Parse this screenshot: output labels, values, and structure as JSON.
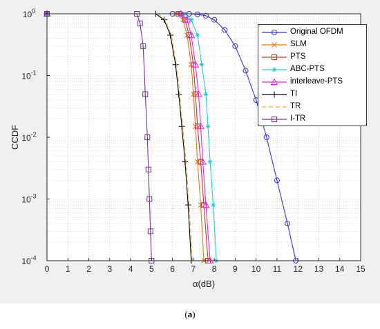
{
  "caption": {
    "open": "(",
    "label": "a",
    "close": ")"
  },
  "chart_data": {
    "type": "line",
    "xlabel": "α(dB)",
    "ylabel": "CCDF",
    "xlim": [
      0,
      15
    ],
    "ylim": [
      0.0001,
      1
    ],
    "yscale": "log",
    "grid": true,
    "legend_position": "top-right",
    "x_ticks": [
      "0",
      "1",
      "2",
      "3",
      "4",
      "5",
      "6",
      "7",
      "8",
      "9",
      "10",
      "11",
      "12",
      "13",
      "14",
      "15"
    ],
    "y_ticks": [
      {
        "base": "10",
        "exp": "0"
      },
      {
        "base": "10",
        "exp": "-1"
      },
      {
        "base": "10",
        "exp": "-2"
      },
      {
        "base": "10",
        "exp": "-3"
      },
      {
        "base": "10",
        "exp": "-4"
      }
    ],
    "series": [
      {
        "name": "Original OFDM",
        "color": "#3333dd",
        "marker": "circle",
        "x": [
          0,
          6.0,
          6.4,
          6.8,
          7.2,
          7.6,
          8.0,
          8.5,
          9.0,
          9.5,
          10.0,
          10.5,
          11.0,
          11.5,
          11.9
        ],
        "y": [
          1,
          1,
          1,
          1,
          0.98,
          0.93,
          0.8,
          0.55,
          0.3,
          0.12,
          0.04,
          0.01,
          0.002,
          0.0004,
          0.0001
        ]
      },
      {
        "name": "SLM",
        "color": "#dd7722",
        "marker": "x",
        "x": [
          0,
          6.2,
          6.5,
          6.7,
          6.9,
          7.0,
          7.1,
          7.2,
          7.35,
          7.5
        ],
        "y": [
          1,
          1,
          0.8,
          0.45,
          0.15,
          0.05,
          0.015,
          0.004,
          0.0008,
          0.0001
        ]
      },
      {
        "name": "PTS",
        "color": "#cc3322",
        "marker": "square",
        "x": [
          0,
          6.3,
          6.6,
          6.8,
          7.0,
          7.1,
          7.2,
          7.35,
          7.5,
          7.7
        ],
        "y": [
          1,
          1,
          0.8,
          0.45,
          0.15,
          0.05,
          0.015,
          0.004,
          0.0008,
          0.0001
        ]
      },
      {
        "name": "ABC-PTS",
        "color": "#22cccc",
        "marker": "star",
        "x": [
          0,
          6.6,
          6.9,
          7.2,
          7.4,
          7.6,
          7.7,
          7.8,
          7.95,
          8.1
        ],
        "y": [
          1,
          1,
          0.8,
          0.45,
          0.15,
          0.05,
          0.015,
          0.004,
          0.0008,
          0.0001
        ]
      },
      {
        "name": "interleave-PTS",
        "color": "#ee22ee",
        "marker": "triangle",
        "x": [
          0,
          6.4,
          6.7,
          6.9,
          7.1,
          7.25,
          7.35,
          7.45,
          7.6,
          7.8
        ],
        "y": [
          1,
          1,
          0.8,
          0.45,
          0.15,
          0.05,
          0.015,
          0.004,
          0.0008,
          0.0001
        ]
      },
      {
        "name": "TI",
        "color": "#000000",
        "marker": "plus",
        "x": [
          0,
          5.2,
          5.6,
          5.9,
          6.15,
          6.3,
          6.45,
          6.6,
          6.75,
          6.9
        ],
        "y": [
          1,
          1,
          0.8,
          0.45,
          0.15,
          0.05,
          0.015,
          0.004,
          0.0008,
          0.0001
        ]
      },
      {
        "name": "TR",
        "color": "#e0b040",
        "marker": "none",
        "dash": true,
        "x": [
          0,
          5.3,
          5.65,
          5.95,
          6.2,
          6.35,
          6.5,
          6.65,
          6.8,
          6.95
        ],
        "y": [
          1,
          1,
          0.8,
          0.45,
          0.15,
          0.05,
          0.015,
          0.004,
          0.0008,
          0.0001
        ]
      },
      {
        "name": "I-TR",
        "color": "#7030a0",
        "marker": "square",
        "x": [
          0,
          4.3,
          4.45,
          4.6,
          4.7,
          4.8,
          4.85,
          4.9,
          4.95,
          5.0
        ],
        "y": [
          1,
          1,
          0.7,
          0.3,
          0.05,
          0.01,
          0.003,
          0.001,
          0.0003,
          0.0001
        ]
      }
    ]
  }
}
